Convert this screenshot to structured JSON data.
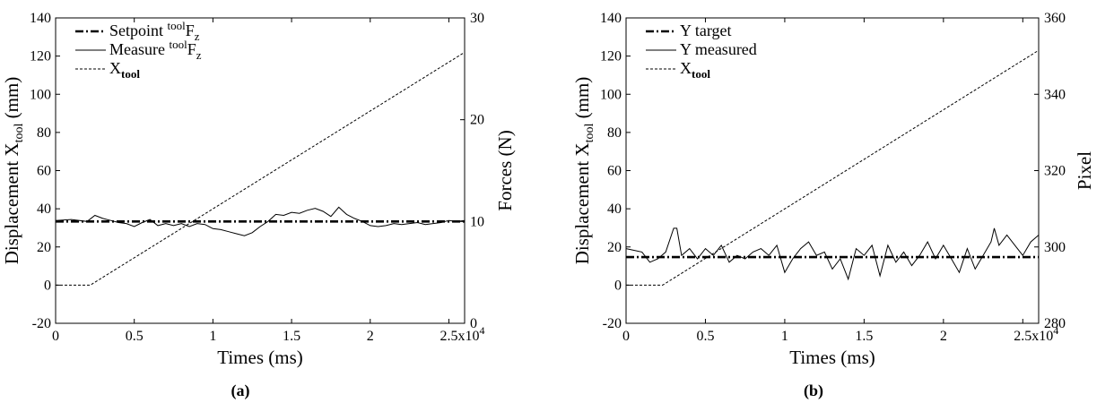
{
  "chart_data": [
    {
      "type": "line",
      "panel_label": "(a)",
      "xlabel": "Times (ms)",
      "x_multiplier": "x10",
      "x_exponent": "4",
      "xlim": [
        0,
        26000
      ],
      "xticks": [
        0,
        5000,
        10000,
        15000,
        20000,
        25000
      ],
      "xtick_labels": [
        "0",
        "0.5",
        "1",
        "1.5",
        "2",
        "2.5"
      ],
      "ylabel_left": {
        "main": "Displacement X",
        "sub": "tool",
        "unit": " (mm)"
      },
      "ylim_left": [
        -20,
        140
      ],
      "yticks_left": [
        "-20",
        "0",
        "20",
        "40",
        "60",
        "80",
        "100",
        "120",
        "140"
      ],
      "ylabel_right": "Forces (N)",
      "ylim_right": [
        0,
        30
      ],
      "yticks_right": [
        "0",
        "10",
        "20",
        "30"
      ],
      "grid": false,
      "legend_position": "top-left",
      "series": [
        {
          "name": "Setpoint toolFz",
          "label": {
            "pre": "Setpoint ",
            "sup": "tool",
            "main": "F",
            "sub": "z"
          },
          "axis": "right",
          "style": "dashdot",
          "x": [
            0,
            26000
          ],
          "y": [
            10,
            10
          ]
        },
        {
          "name": "Measure toolFz",
          "label": {
            "pre": "Measure ",
            "sup": "tool",
            "main": "F",
            "sub": "z"
          },
          "axis": "right",
          "style": "solid",
          "x": [
            0,
            1000,
            2000,
            2500,
            3000,
            3500,
            4000,
            4500,
            5000,
            5500,
            6000,
            6500,
            7000,
            7500,
            8000,
            8500,
            9000,
            9500,
            10000,
            10500,
            11000,
            11500,
            12000,
            12500,
            13000,
            13500,
            14000,
            14500,
            15000,
            15500,
            16000,
            16500,
            17000,
            17500,
            18000,
            18500,
            19000,
            19500,
            20000,
            20500,
            21000,
            21500,
            22000,
            22500,
            23000,
            23500,
            24000,
            24500,
            25000,
            25500,
            26000
          ],
          "y": [
            10.1,
            10.2,
            10.0,
            10.6,
            10.3,
            10.1,
            9.9,
            9.8,
            9.5,
            9.9,
            10.2,
            9.6,
            9.8,
            9.6,
            9.8,
            9.5,
            9.8,
            9.7,
            9.3,
            9.2,
            9.0,
            8.8,
            8.6,
            8.9,
            9.5,
            10.0,
            10.7,
            10.6,
            10.9,
            10.8,
            11.1,
            11.3,
            11.0,
            10.5,
            11.4,
            10.7,
            10.3,
            10.0,
            9.6,
            9.5,
            9.6,
            9.8,
            9.7,
            9.8,
            9.9,
            9.7,
            9.8,
            9.9,
            10.1,
            10.0,
            10.1
          ]
        },
        {
          "name": "Xtool",
          "label": {
            "pre": "",
            "sup": "",
            "main": "X",
            "sub": "tool"
          },
          "axis": "left",
          "style": "dashed",
          "x": [
            0,
            2200,
            26000
          ],
          "y": [
            0,
            0,
            122
          ]
        }
      ]
    },
    {
      "type": "line",
      "panel_label": "(b)",
      "xlabel": "Times (ms)",
      "x_multiplier": "x10",
      "x_exponent": "4",
      "xlim": [
        0,
        26000
      ],
      "xticks": [
        0,
        5000,
        10000,
        15000,
        20000,
        25000
      ],
      "xtick_labels": [
        "0",
        "0.5",
        "1",
        "1.5",
        "2",
        "2.5"
      ],
      "ylabel_left": {
        "main": "Displacement X",
        "sub": "tool",
        "unit": " (mm)"
      },
      "ylim_left": [
        -20,
        140
      ],
      "yticks_left": [
        "-20",
        "0",
        "20",
        "40",
        "60",
        "80",
        "100",
        "120",
        "140"
      ],
      "ylabel_right": "Pixel",
      "ylim_right": [
        280,
        370
      ],
      "yticks_right": [
        "280",
        "300",
        "320",
        "340",
        "360"
      ],
      "grid": false,
      "legend_position": "top-left",
      "series": [
        {
          "name": "Y target",
          "label": {
            "pre": "Y target",
            "sup": "",
            "main": "",
            "sub": ""
          },
          "axis": "right",
          "style": "dashdot",
          "x": [
            0,
            26000
          ],
          "y": [
            299.5,
            299.5
          ]
        },
        {
          "name": "Y measured",
          "label": {
            "pre": "Y measured",
            "sup": "",
            "main": "",
            "sub": ""
          },
          "axis": "right",
          "style": "solid",
          "x": [
            0,
            500,
            1000,
            1500,
            2000,
            2500,
            3000,
            3200,
            3500,
            4000,
            4500,
            5000,
            5500,
            6000,
            6500,
            7000,
            7500,
            8000,
            8500,
            9000,
            9500,
            10000,
            10500,
            11000,
            11500,
            12000,
            12500,
            13000,
            13500,
            14000,
            14500,
            15000,
            15500,
            16000,
            16500,
            17000,
            17500,
            18000,
            18500,
            19000,
            19500,
            20000,
            20500,
            21000,
            21500,
            22000,
            22500,
            23000,
            23200,
            23500,
            24000,
            24500,
            25000,
            25500,
            26000
          ],
          "y": [
            302,
            301.5,
            301,
            298,
            299,
            301,
            308,
            308,
            300,
            302,
            299,
            302,
            300,
            303,
            298,
            300,
            299,
            301,
            302,
            300,
            303,
            295,
            299,
            302,
            304,
            300,
            301,
            296,
            299,
            293,
            302,
            300,
            303,
            294,
            303,
            298,
            301,
            297,
            300,
            304,
            299,
            303,
            299,
            295,
            302,
            296,
            300,
            304,
            308,
            303,
            306,
            303,
            300,
            304,
            306
          ]
        },
        {
          "name": "Xtool",
          "label": {
            "pre": "",
            "sup": "",
            "main": "X",
            "sub": "tool"
          },
          "axis": "left",
          "style": "dashed",
          "x": [
            0,
            2300,
            26000
          ],
          "y": [
            0,
            0,
            123
          ]
        }
      ]
    }
  ]
}
